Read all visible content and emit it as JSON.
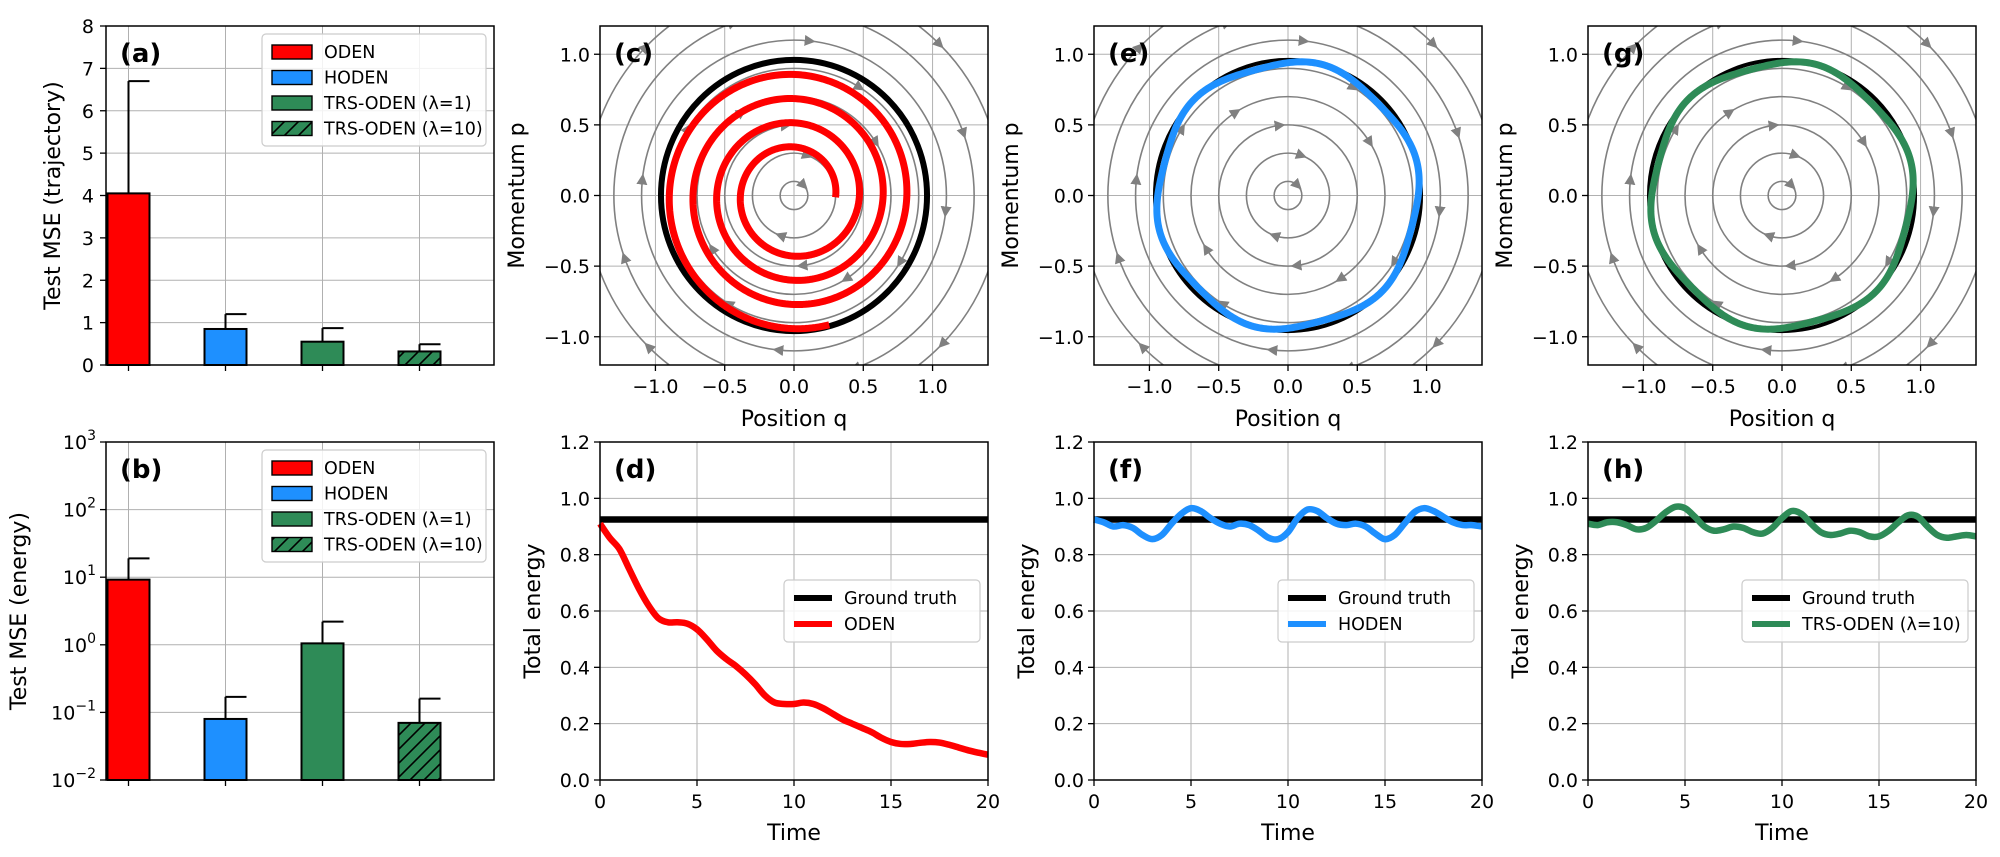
{
  "chart_data": [
    {
      "panel": "(a)",
      "type": "bar",
      "categories": [
        "ODEN",
        "HODEN",
        "TRS-ODEN (λ=1)",
        "TRS-ODEN (λ=10)"
      ],
      "values": [
        4.05,
        0.85,
        0.55,
        0.32
      ],
      "errors": [
        2.65,
        0.35,
        0.32,
        0.17
      ],
      "colors": [
        "#ff0000",
        "#1e90ff",
        "#2e8b57",
        "#2e8b57"
      ],
      "hatched": [
        false,
        false,
        false,
        true
      ],
      "ylabel": "Test MSE (trajectory)",
      "ylim": [
        0,
        8
      ],
      "yticks": [
        "0",
        "1",
        "2",
        "3",
        "4",
        "5",
        "6",
        "7",
        "8"
      ],
      "legend": [
        "ODEN",
        "HODEN",
        "TRS-ODEN (λ=1)",
        "TRS-ODEN (λ=10)"
      ],
      "legend_position": "top-right",
      "grid": true
    },
    {
      "panel": "(b)",
      "type": "bar",
      "yscale": "log",
      "categories": [
        "ODEN",
        "HODEN",
        "TRS-ODEN (λ=1)",
        "TRS-ODEN (λ=10)"
      ],
      "values": [
        9.2,
        0.08,
        1.05,
        0.07
      ],
      "error_upper": [
        19,
        0.17,
        2.2,
        0.16
      ],
      "colors": [
        "#ff0000",
        "#1e90ff",
        "#2e8b57",
        "#2e8b57"
      ],
      "hatched": [
        false,
        false,
        false,
        true
      ],
      "ylabel": "Test MSE (energy)",
      "ylim": [
        0.01,
        1000
      ],
      "yticks_exponents": [
        "−2",
        "−1",
        "0",
        "1",
        "2",
        "3"
      ],
      "tick_base": "10",
      "legend": [
        "ODEN",
        "HODEN",
        "TRS-ODEN (λ=1)",
        "TRS-ODEN (λ=10)"
      ],
      "legend_position": "top-right",
      "grid": true
    },
    {
      "panel": "(c)",
      "type": "line",
      "plot": "phase",
      "xlabel": "Position q",
      "ylabel": "Momentum p",
      "xlim": [
        -1.4,
        1.4
      ],
      "ylim": [
        -1.2,
        1.2
      ],
      "xticks": [
        "−1.0",
        "−0.5",
        "0.0",
        "0.5",
        "1.0"
      ],
      "yticks": [
        "−1.0",
        "−0.5",
        "0.0",
        "0.5",
        "1.0"
      ],
      "ground_truth_radius": 0.96,
      "flow_radii": [
        0.1,
        0.3,
        0.5,
        0.7,
        0.9,
        1.1,
        1.3,
        1.5
      ],
      "prediction": {
        "name": "ODEN",
        "color": "#ff0000",
        "kind": "spiral",
        "r_start": 0.95,
        "r_end": 0.3,
        "turns": 3.8
      },
      "grid": true
    },
    {
      "panel": "(d)",
      "type": "line",
      "xlabel": "Time",
      "ylabel": "Total energy",
      "xlim": [
        0,
        20
      ],
      "ylim": [
        0,
        1.2
      ],
      "xticks": [
        "0",
        "5",
        "10",
        "15",
        "20"
      ],
      "yticks": [
        "0.0",
        "0.2",
        "0.4",
        "0.6",
        "0.8",
        "1.0",
        "1.2"
      ],
      "series": [
        {
          "name": "Ground truth",
          "color": "#000000",
          "x": [
            0,
            20
          ],
          "y": [
            0.925,
            0.925
          ]
        },
        {
          "name": "ODEN",
          "color": "#ff0000",
          "x": [
            0,
            0.5,
            1,
            1.5,
            2,
            2.5,
            3,
            3.5,
            4,
            4.5,
            5,
            5.5,
            6,
            6.5,
            7,
            7.5,
            8,
            8.5,
            9,
            9.5,
            10,
            10.5,
            11,
            11.5,
            12,
            12.5,
            13,
            13.5,
            14,
            14.5,
            15,
            15.5,
            16,
            16.5,
            17,
            17.5,
            18,
            18.5,
            19,
            19.5,
            20
          ],
          "y": [
            0.91,
            0.86,
            0.82,
            0.75,
            0.68,
            0.62,
            0.575,
            0.56,
            0.56,
            0.555,
            0.535,
            0.5,
            0.46,
            0.43,
            0.405,
            0.375,
            0.34,
            0.3,
            0.275,
            0.27,
            0.27,
            0.275,
            0.27,
            0.255,
            0.235,
            0.215,
            0.2,
            0.185,
            0.17,
            0.15,
            0.135,
            0.128,
            0.128,
            0.132,
            0.135,
            0.133,
            0.125,
            0.115,
            0.105,
            0.097,
            0.09
          ]
        }
      ],
      "legend_position": "center-right",
      "grid": true
    },
    {
      "panel": "(e)",
      "type": "line",
      "plot": "phase",
      "xlabel": "Position q",
      "ylabel": "Momentum p",
      "xlim": [
        -1.4,
        1.4
      ],
      "ylim": [
        -1.2,
        1.2
      ],
      "xticks": [
        "−1.0",
        "−0.5",
        "0.0",
        "0.5",
        "1.0"
      ],
      "yticks": [
        "−1.0",
        "−0.5",
        "0.0",
        "0.5",
        "1.0"
      ],
      "ground_truth_radius": 0.96,
      "flow_radii": [
        0.1,
        0.3,
        0.5,
        0.7,
        0.9,
        1.1,
        1.3,
        1.5
      ],
      "prediction": {
        "name": "HODEN",
        "color": "#1e90ff",
        "kind": "ring",
        "r": 0.94,
        "wobble": 0.02
      },
      "grid": true
    },
    {
      "panel": "(f)",
      "type": "line",
      "xlabel": "Time",
      "ylabel": "Total energy",
      "xlim": [
        0,
        20
      ],
      "ylim": [
        0,
        1.2
      ],
      "xticks": [
        "0",
        "5",
        "10",
        "15",
        "20"
      ],
      "yticks": [
        "0.0",
        "0.2",
        "0.4",
        "0.6",
        "0.8",
        "1.0",
        "1.2"
      ],
      "series": [
        {
          "name": "Ground truth",
          "color": "#000000",
          "x": [
            0,
            20
          ],
          "y": [
            0.925,
            0.925
          ]
        },
        {
          "name": "HODEN",
          "color": "#1e90ff",
          "x": [
            0,
            0.5,
            1,
            1.5,
            2,
            2.5,
            3,
            3.5,
            4,
            4.5,
            5,
            5.5,
            6,
            6.5,
            7,
            7.5,
            8,
            8.5,
            9,
            9.5,
            10,
            10.5,
            11,
            11.5,
            12,
            12.5,
            13,
            13.5,
            14,
            14.5,
            15,
            15.5,
            16,
            16.5,
            17,
            17.5,
            18,
            18.5,
            19,
            19.5,
            20
          ],
          "y": [
            0.925,
            0.915,
            0.9,
            0.905,
            0.895,
            0.87,
            0.855,
            0.87,
            0.91,
            0.945,
            0.965,
            0.955,
            0.93,
            0.91,
            0.9,
            0.91,
            0.905,
            0.885,
            0.86,
            0.855,
            0.88,
            0.93,
            0.96,
            0.955,
            0.93,
            0.91,
            0.905,
            0.91,
            0.9,
            0.875,
            0.855,
            0.87,
            0.91,
            0.95,
            0.965,
            0.955,
            0.935,
            0.915,
            0.905,
            0.905,
            0.9
          ]
        }
      ],
      "legend_position": "center-right",
      "grid": true
    },
    {
      "panel": "(g)",
      "type": "line",
      "plot": "phase",
      "xlabel": "Position q",
      "ylabel": "Momentum p",
      "xlim": [
        -1.4,
        1.4
      ],
      "ylim": [
        -1.2,
        1.2
      ],
      "xticks": [
        "−1.0",
        "−0.5",
        "0.0",
        "0.5",
        "1.0"
      ],
      "yticks": [
        "−1.0",
        "−0.5",
        "0.0",
        "0.5",
        "1.0"
      ],
      "ground_truth_radius": 0.96,
      "flow_radii": [
        0.1,
        0.3,
        0.5,
        0.7,
        0.9,
        1.1,
        1.3,
        1.5
      ],
      "prediction": {
        "name": "TRS-ODEN (λ=10)",
        "color": "#2e8b57",
        "kind": "ring",
        "r": 0.94,
        "wobble": 0.02
      },
      "grid": true
    },
    {
      "panel": "(h)",
      "type": "line",
      "xlabel": "Time",
      "ylabel": "Total energy",
      "xlim": [
        0,
        20
      ],
      "ylim": [
        0,
        1.2
      ],
      "xticks": [
        "0",
        "5",
        "10",
        "15",
        "20"
      ],
      "yticks": [
        "0.0",
        "0.2",
        "0.4",
        "0.6",
        "0.8",
        "1.0",
        "1.2"
      ],
      "series": [
        {
          "name": "Ground truth",
          "color": "#000000",
          "x": [
            0,
            20
          ],
          "y": [
            0.925,
            0.925
          ]
        },
        {
          "name": "TRS-ODEN (λ=10)",
          "color": "#2e8b57",
          "x": [
            0,
            0.5,
            1,
            1.5,
            2,
            2.5,
            3,
            3.5,
            4,
            4.5,
            5,
            5.5,
            6,
            6.5,
            7,
            7.5,
            8,
            8.5,
            9,
            9.5,
            10,
            10.5,
            11,
            11.5,
            12,
            12.5,
            13,
            13.5,
            14,
            14.5,
            15,
            15.5,
            16,
            16.5,
            17,
            17.5,
            18,
            18.5,
            19,
            19.5,
            20
          ],
          "y": [
            0.91,
            0.905,
            0.915,
            0.915,
            0.905,
            0.89,
            0.895,
            0.92,
            0.95,
            0.97,
            0.965,
            0.935,
            0.9,
            0.885,
            0.89,
            0.9,
            0.895,
            0.88,
            0.875,
            0.895,
            0.93,
            0.955,
            0.945,
            0.91,
            0.88,
            0.87,
            0.875,
            0.885,
            0.88,
            0.865,
            0.865,
            0.885,
            0.915,
            0.94,
            0.935,
            0.9,
            0.87,
            0.86,
            0.865,
            0.87,
            0.865
          ]
        }
      ],
      "legend_position": "center-right",
      "grid": true
    }
  ]
}
